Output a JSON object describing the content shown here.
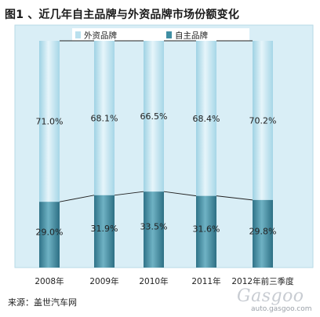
{
  "title": "图1 、近几年自主品牌与外资品牌市场份额变化",
  "source": "来源：盖世汽车网",
  "watermark": {
    "logo": "Gasgoo",
    "url": "auto.gasgoo.com"
  },
  "chart_data": {
    "type": "bar",
    "stacked": true,
    "percent": true,
    "categories": [
      "2008年",
      "2009年",
      "2010年",
      "2011年",
      "2012年前三季度"
    ],
    "series": [
      {
        "name": "外资品牌",
        "values": [
          71.0,
          68.1,
          66.5,
          68.4,
          70.2
        ],
        "labels": [
          "71.0%",
          "68.1%",
          "66.5%",
          "68.4%",
          "70.2%"
        ],
        "color": "#b9e0ee"
      },
      {
        "name": "自主品牌",
        "values": [
          29.0,
          31.9,
          33.5,
          31.6,
          29.8
        ],
        "labels": [
          "29.0%",
          "31.9%",
          "33.5%",
          "31.6%",
          "29.8%"
        ],
        "color": "#3f8ea3"
      }
    ],
    "ylim": [
      0,
      100
    ],
    "legend_position": "top",
    "connector_lines": true,
    "grid": false
  }
}
